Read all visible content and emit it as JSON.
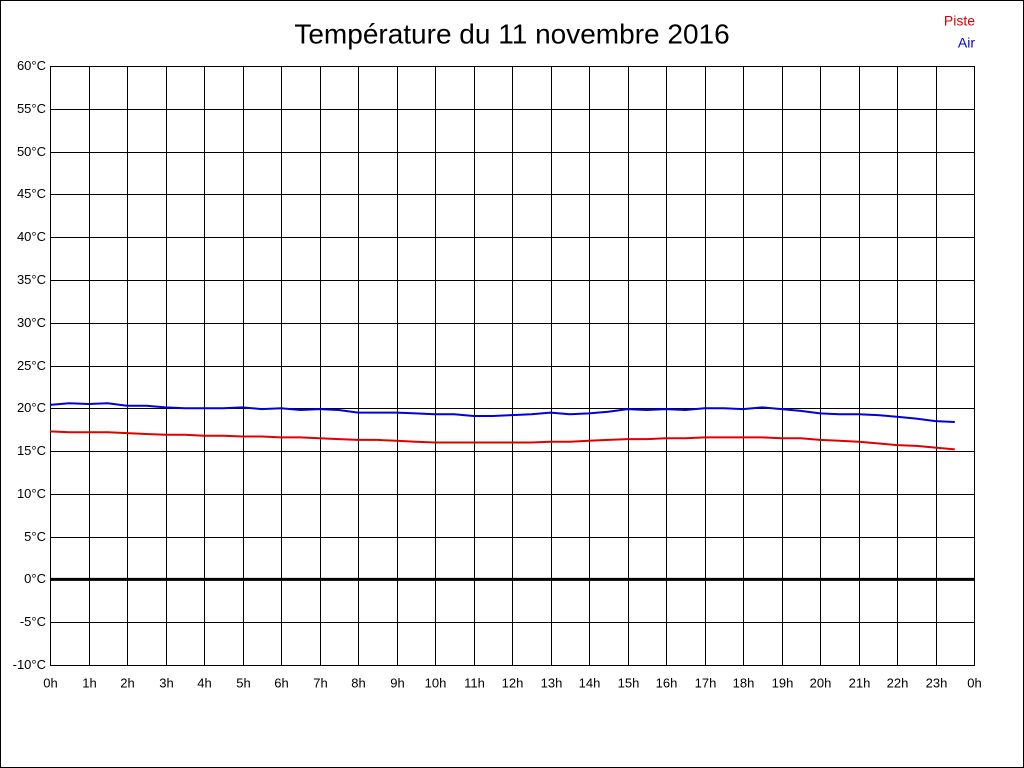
{
  "chart_data": {
    "type": "line",
    "title": "Température du 11 novembre 2016",
    "x": [
      0,
      0.5,
      1,
      1.5,
      2,
      2.5,
      3,
      3.5,
      4,
      4.5,
      5,
      5.5,
      6,
      6.5,
      7,
      7.5,
      8,
      8.5,
      9,
      9.5,
      10,
      10.5,
      11,
      11.5,
      12,
      12.5,
      13,
      13.5,
      14,
      14.5,
      15,
      15.5,
      16,
      16.5,
      17,
      17.5,
      18,
      18.5,
      19,
      19.5,
      20,
      20.5,
      21,
      21.5,
      22,
      22.5,
      23,
      23.5
    ],
    "series": [
      {
        "name": "Piste",
        "color": "#e00000",
        "values": [
          17.3,
          17.2,
          17.2,
          17.2,
          17.1,
          17.0,
          16.9,
          16.9,
          16.8,
          16.8,
          16.7,
          16.7,
          16.6,
          16.6,
          16.5,
          16.4,
          16.3,
          16.3,
          16.2,
          16.1,
          16.0,
          16.0,
          16.0,
          16.0,
          16.0,
          16.0,
          16.1,
          16.1,
          16.2,
          16.3,
          16.4,
          16.4,
          16.5,
          16.5,
          16.6,
          16.6,
          16.6,
          16.6,
          16.5,
          16.5,
          16.3,
          16.2,
          16.1,
          15.9,
          15.7,
          15.6,
          15.4,
          15.2
        ]
      },
      {
        "name": "Air",
        "color": "#0000e0",
        "values": [
          20.4,
          20.6,
          20.5,
          20.6,
          20.3,
          20.3,
          20.1,
          20.0,
          20.0,
          20.0,
          20.1,
          19.9,
          20.0,
          19.8,
          19.9,
          19.8,
          19.5,
          19.5,
          19.5,
          19.4,
          19.3,
          19.3,
          19.1,
          19.1,
          19.2,
          19.3,
          19.5,
          19.3,
          19.4,
          19.6,
          19.9,
          19.8,
          19.9,
          19.8,
          20.0,
          20.0,
          19.9,
          20.1,
          19.9,
          19.7,
          19.4,
          19.3,
          19.3,
          19.2,
          19.0,
          18.8,
          18.5,
          18.4
        ]
      }
    ],
    "xlim": [
      0,
      24
    ],
    "xticks": [
      {
        "value": 0,
        "label": "0h"
      },
      {
        "value": 1,
        "label": "1h"
      },
      {
        "value": 2,
        "label": "2h"
      },
      {
        "value": 3,
        "label": "3h"
      },
      {
        "value": 4,
        "label": "4h"
      },
      {
        "value": 5,
        "label": "5h"
      },
      {
        "value": 6,
        "label": "6h"
      },
      {
        "value": 7,
        "label": "7h"
      },
      {
        "value": 8,
        "label": "8h"
      },
      {
        "value": 9,
        "label": "9h"
      },
      {
        "value": 10,
        "label": "10h"
      },
      {
        "value": 11,
        "label": "11h"
      },
      {
        "value": 12,
        "label": "12h"
      },
      {
        "value": 13,
        "label": "13h"
      },
      {
        "value": 14,
        "label": "14h"
      },
      {
        "value": 15,
        "label": "15h"
      },
      {
        "value": 16,
        "label": "16h"
      },
      {
        "value": 17,
        "label": "17h"
      },
      {
        "value": 18,
        "label": "18h"
      },
      {
        "value": 19,
        "label": "19h"
      },
      {
        "value": 20,
        "label": "20h"
      },
      {
        "value": 21,
        "label": "21h"
      },
      {
        "value": 22,
        "label": "22h"
      },
      {
        "value": 23,
        "label": "23h"
      },
      {
        "value": 24,
        "label": "0h"
      }
    ],
    "ylim": [
      -10,
      60
    ],
    "yticks": [
      {
        "value": -10,
        "label": "-10°C"
      },
      {
        "value": -5,
        "label": "-5°C"
      },
      {
        "value": 0,
        "label": "0°C"
      },
      {
        "value": 5,
        "label": "5°C"
      },
      {
        "value": 10,
        "label": "10°C"
      },
      {
        "value": 15,
        "label": "15°C"
      },
      {
        "value": 20,
        "label": "20°C"
      },
      {
        "value": 25,
        "label": "25°C"
      },
      {
        "value": 30,
        "label": "30°C"
      },
      {
        "value": 35,
        "label": "35°C"
      },
      {
        "value": 40,
        "label": "40°C"
      },
      {
        "value": 45,
        "label": "45°C"
      },
      {
        "value": 50,
        "label": "50°C"
      },
      {
        "value": 55,
        "label": "55°C"
      },
      {
        "value": 60,
        "label": "60°C"
      }
    ],
    "grid": true,
    "zero_line": true,
    "legend": "top-right"
  }
}
